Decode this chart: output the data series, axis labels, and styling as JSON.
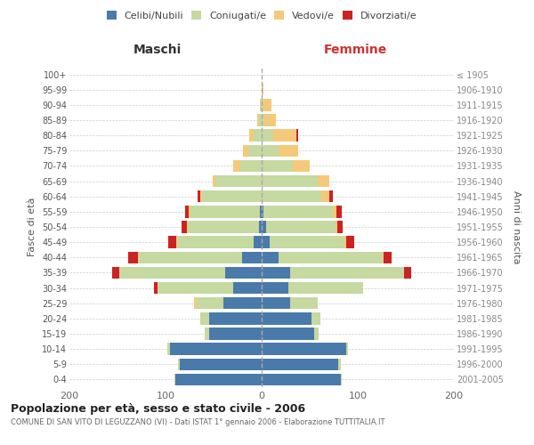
{
  "age_groups": [
    "0-4",
    "5-9",
    "10-14",
    "15-19",
    "20-24",
    "25-29",
    "30-34",
    "35-39",
    "40-44",
    "45-49",
    "50-54",
    "55-59",
    "60-64",
    "65-69",
    "70-74",
    "75-79",
    "80-84",
    "85-89",
    "90-94",
    "95-99",
    "100+"
  ],
  "birth_years": [
    "2001-2005",
    "1996-2000",
    "1991-1995",
    "1986-1990",
    "1981-1985",
    "1976-1980",
    "1971-1975",
    "1966-1970",
    "1961-1965",
    "1956-1960",
    "1951-1955",
    "1946-1950",
    "1941-1945",
    "1936-1940",
    "1931-1935",
    "1926-1930",
    "1921-1925",
    "1916-1920",
    "1911-1915",
    "1906-1910",
    "≤ 1905"
  ],
  "male_celibi": [
    90,
    85,
    95,
    55,
    55,
    40,
    30,
    38,
    20,
    8,
    3,
    2,
    0,
    0,
    0,
    0,
    0,
    0,
    0,
    0,
    0
  ],
  "male_coniugati": [
    1,
    2,
    3,
    4,
    9,
    28,
    78,
    110,
    108,
    80,
    74,
    72,
    62,
    48,
    22,
    14,
    8,
    3,
    1,
    0,
    0
  ],
  "male_vedovi": [
    0,
    0,
    0,
    0,
    0,
    2,
    0,
    0,
    1,
    1,
    1,
    2,
    2,
    3,
    8,
    5,
    5,
    2,
    1,
    0,
    0
  ],
  "male_divorziati": [
    0,
    0,
    0,
    0,
    0,
    0,
    4,
    8,
    10,
    8,
    5,
    4,
    3,
    0,
    0,
    0,
    0,
    0,
    0,
    0,
    0
  ],
  "female_celibi": [
    82,
    80,
    88,
    55,
    52,
    30,
    28,
    30,
    18,
    8,
    5,
    2,
    0,
    0,
    0,
    0,
    0,
    0,
    0,
    0,
    0
  ],
  "female_coniugati": [
    1,
    2,
    2,
    4,
    9,
    28,
    78,
    118,
    108,
    78,
    72,
    72,
    62,
    58,
    32,
    18,
    12,
    3,
    2,
    0,
    0
  ],
  "female_vedovi": [
    0,
    0,
    0,
    0,
    0,
    0,
    0,
    0,
    1,
    2,
    2,
    4,
    8,
    12,
    18,
    20,
    24,
    12,
    8,
    2,
    0
  ],
  "female_divorziati": [
    0,
    0,
    0,
    0,
    0,
    0,
    0,
    8,
    8,
    8,
    5,
    5,
    4,
    0,
    0,
    0,
    2,
    0,
    0,
    0,
    0
  ],
  "color_celibi": "#4a7aaa",
  "color_coniugati": "#c5d9a0",
  "color_vedovi": "#f5c97a",
  "color_divorziati": "#cc2222",
  "color_grid": "#cccccc",
  "xlabel_left": "Maschi",
  "xlabel_right": "Femmine",
  "ylabel_left": "Fasce di età",
  "ylabel_right": "Anni di nascita",
  "title": "Popolazione per età, sesso e stato civile - 2006",
  "subtitle": "COMUNE DI SAN VITO DI LEGUZZANO (VI) - Dati ISTAT 1° gennaio 2006 - Elaborazione TUTTITALIA.IT",
  "xlim": 200,
  "background_color": "#ffffff"
}
